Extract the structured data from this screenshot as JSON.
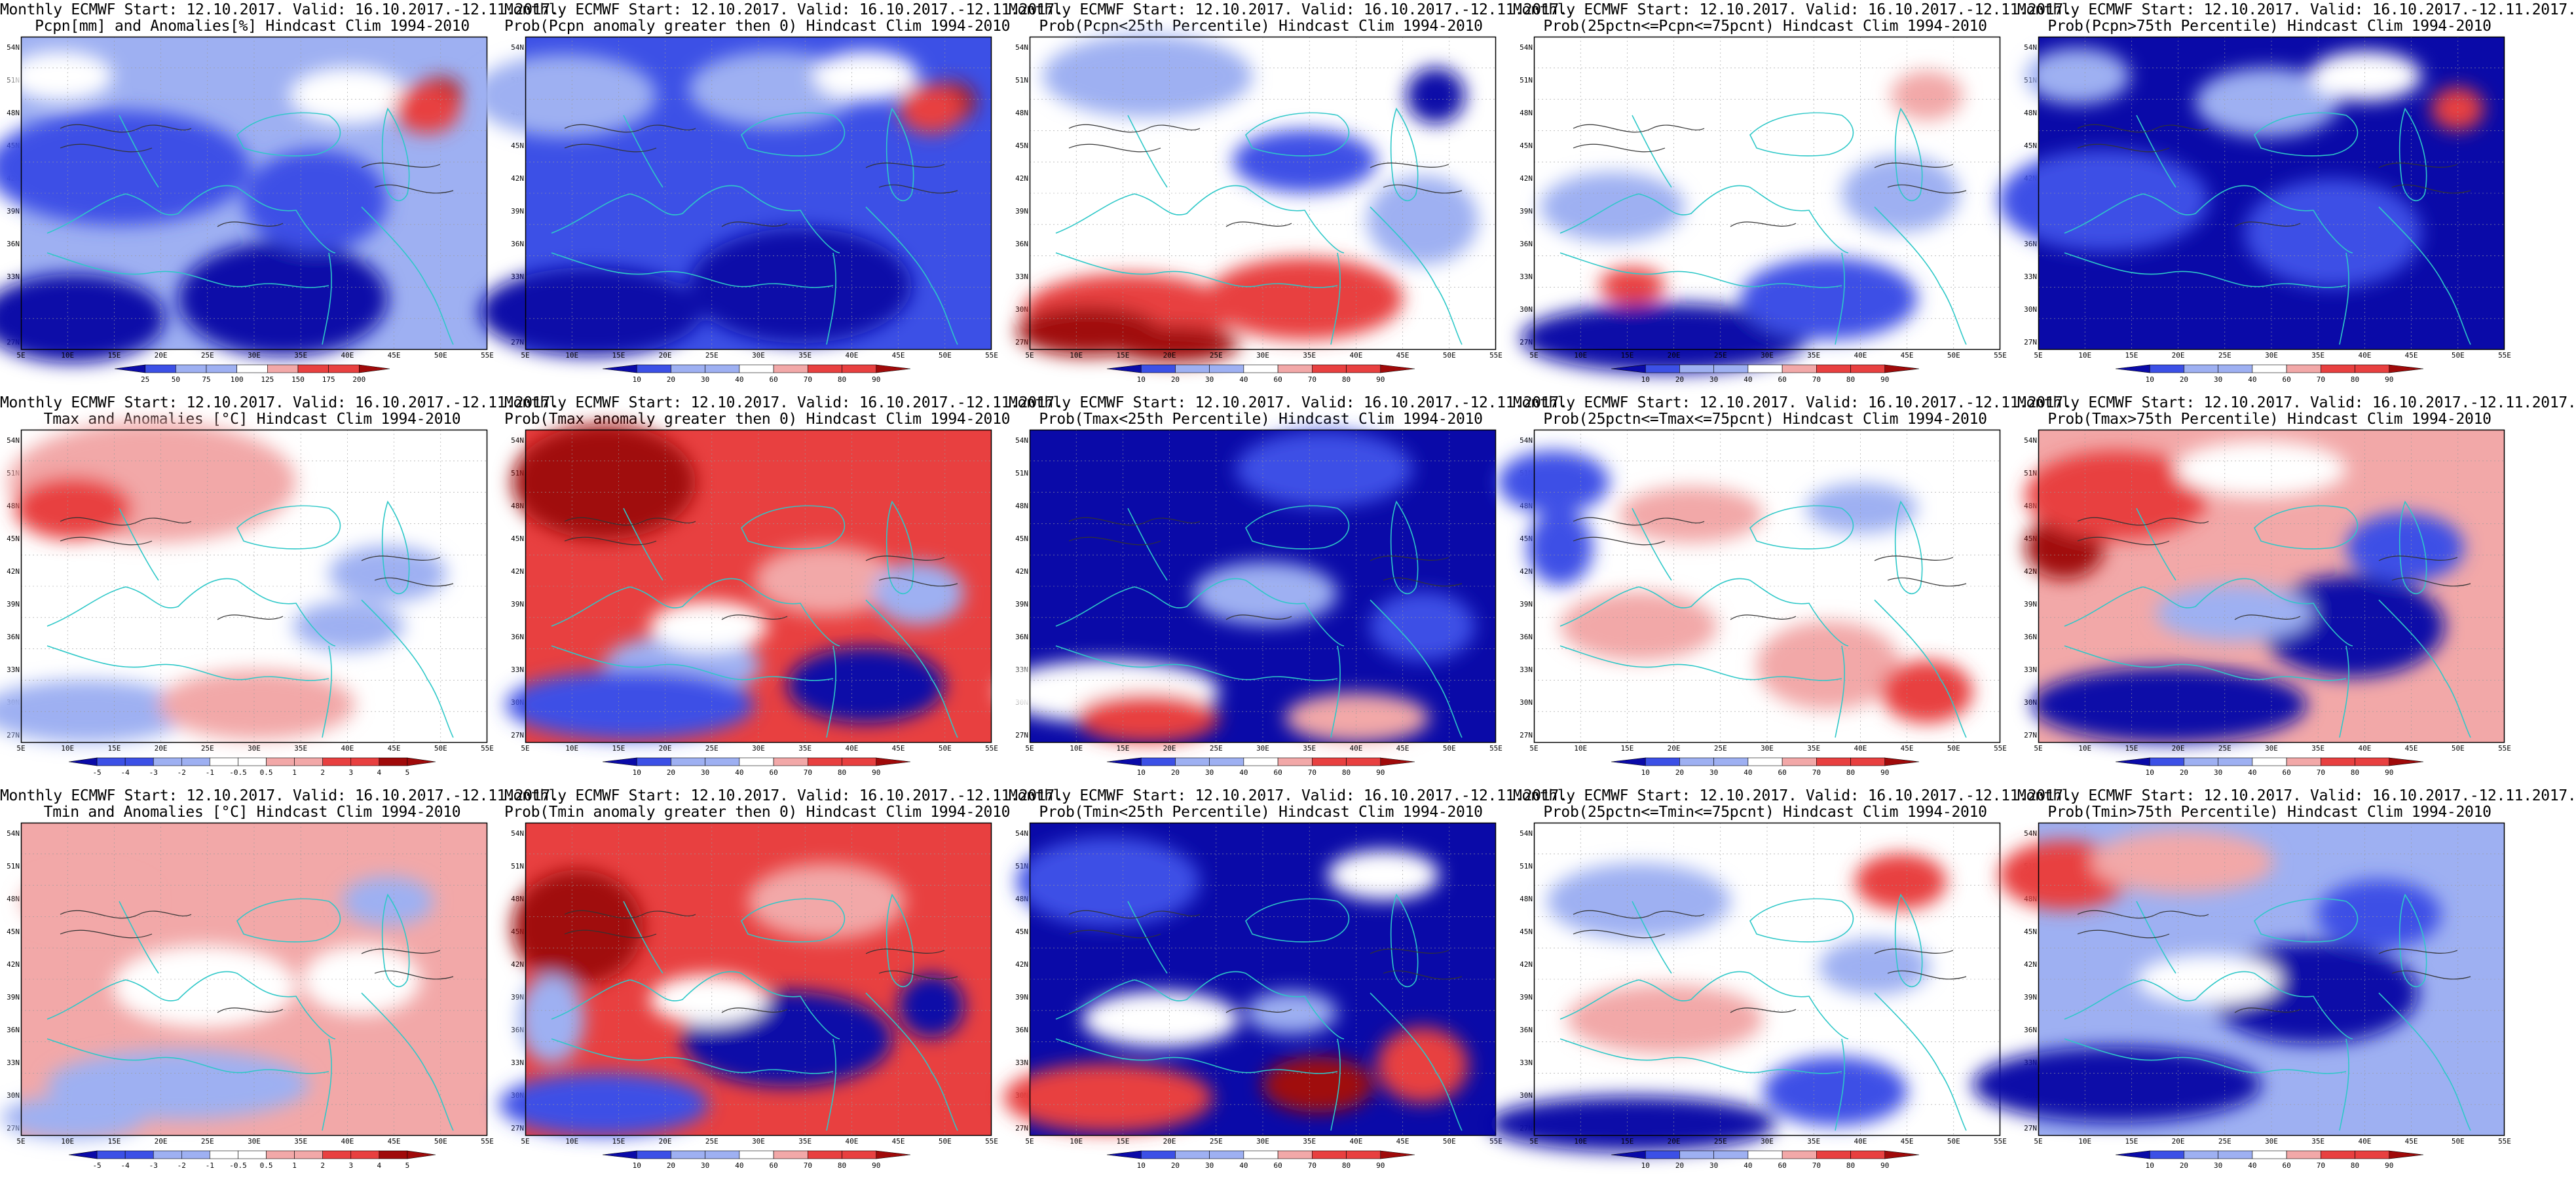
{
  "lat_labels": [
    "54N",
    "51N",
    "48N",
    "45N",
    "42N",
    "39N",
    "36N",
    "33N",
    "30N",
    "27N"
  ],
  "lon_labels": [
    "5E",
    "10E",
    "15E",
    "20E",
    "25E",
    "30E",
    "35E",
    "40E",
    "45E",
    "50E",
    "55E"
  ],
  "colors": {
    "coast": "#2ec8c8",
    "contour": "#333333",
    "blue_dark": "#0a0aa8",
    "blue_mid": "#3c50e6",
    "blue_light": "#9eb0f2",
    "white": "#ffffff",
    "red_light": "#f2a8a8",
    "red_mid": "#e84040",
    "red_dark": "#a00a0a"
  },
  "colorbars": {
    "precip_anom": [
      "25",
      "50",
      "75",
      "100",
      "125",
      "150",
      "175",
      "200"
    ],
    "temp_anom": [
      "-5",
      "-4",
      "-3",
      "-2",
      "-1",
      "-0.5",
      "0.5",
      "1",
      "2",
      "3",
      "4",
      "5"
    ],
    "prob": [
      "10",
      "20",
      "30",
      "40",
      "60",
      "70",
      "80",
      "90"
    ]
  },
  "panels": [
    {
      "t1": "Monthly ECMWF Start: 12.10.2017. Valid: 16.10.2017.-12.11.2017.",
      "t2": "Pcpn[mm] and Anomalies[%] Hindcast Clim 1994-2010",
      "cb": "precip_anom"
    },
    {
      "t1": "Monthly ECMWF Start: 12.10.2017. Valid: 16.10.2017.-12.11.2017.",
      "t2": "Prob(Pcpn anomaly greater then 0) Hindcast Clim 1994-2010",
      "cb": "prob"
    },
    {
      "t1": "Monthly ECMWF Start: 12.10.2017. Valid: 16.10.2017.-12.11.2017.",
      "t2": "Prob(Pcpn<25th Percentile) Hindcast Clim 1994-2010",
      "cb": "prob"
    },
    {
      "t1": "Monthly ECMWF Start: 12.10.2017. Valid: 16.10.2017.-12.11.2017.",
      "t2": "Prob(25pctn<=Pcpn<=75pcnt) Hindcast Clim 1994-2010",
      "cb": "prob"
    },
    {
      "t1": "Monthly ECMWF Start: 12.10.2017. Valid: 16.10.2017.-12.11.2017.",
      "t2": "Prob(Pcpn>75th Percentile) Hindcast Clim 1994-2010",
      "cb": "prob"
    },
    {
      "t1": "Monthly ECMWF Start: 12.10.2017. Valid: 16.10.2017.-12.11.2017.",
      "t2": "Tmax and Anomalies [°C] Hindcast Clim 1994-2010",
      "cb": "temp_anom"
    },
    {
      "t1": "Monthly ECMWF Start: 12.10.2017. Valid: 16.10.2017.-12.11.2017.",
      "t2": "Prob(Tmax anomaly greater then 0) Hindcast Clim 1994-2010",
      "cb": "prob"
    },
    {
      "t1": "Monthly ECMWF Start: 12.10.2017. Valid: 16.10.2017.-12.11.2017.",
      "t2": "Prob(Tmax<25th Percentile) Hindcast Clim 1994-2010",
      "cb": "prob"
    },
    {
      "t1": "Monthly ECMWF Start: 12.10.2017. Valid: 16.10.2017.-12.11.2017.",
      "t2": "Prob(25pctn<=Tmax<=75pcnt) Hindcast Clim 1994-2010",
      "cb": "prob"
    },
    {
      "t1": "Monthly ECMWF Start: 12.10.2017. Valid: 16.10.2017.-12.11.2017.",
      "t2": "Prob(Tmax>75th Percentile) Hindcast Clim 1994-2010",
      "cb": "prob"
    },
    {
      "t1": "Monthly ECMWF Start: 12.10.2017. Valid: 16.10.2017.-12.11.2017.",
      "t2": "Tmin and Anomalies [°C] Hindcast Clim 1994-2010",
      "cb": "temp_anom"
    },
    {
      "t1": "Monthly ECMWF Start: 12.10.2017. Valid: 16.10.2017.-12.11.2017.",
      "t2": "Prob(Tmin anomaly greater then 0) Hindcast Clim 1994-2010",
      "cb": "prob"
    },
    {
      "t1": "Monthly ECMWF Start: 12.10.2017. Valid: 16.10.2017.-12.11.2017.",
      "t2": "Prob(Tmin<25th Percentile) Hindcast Clim 1994-2010",
      "cb": "prob"
    },
    {
      "t1": "Monthly ECMWF Start: 12.10.2017. Valid: 16.10.2017.-12.11.2017.",
      "t2": "Prob(25pctn<=Tmin<=75pcnt) Hindcast Clim 1994-2010",
      "cb": "prob"
    },
    {
      "t1": "Monthly ECMWF Start: 12.10.2017. Valid: 16.10.2017.-12.11.2017.",
      "t2": "Prob(Tmin>75th Percentile) Hindcast Clim 1994-2010",
      "cb": "prob"
    }
  ]
}
